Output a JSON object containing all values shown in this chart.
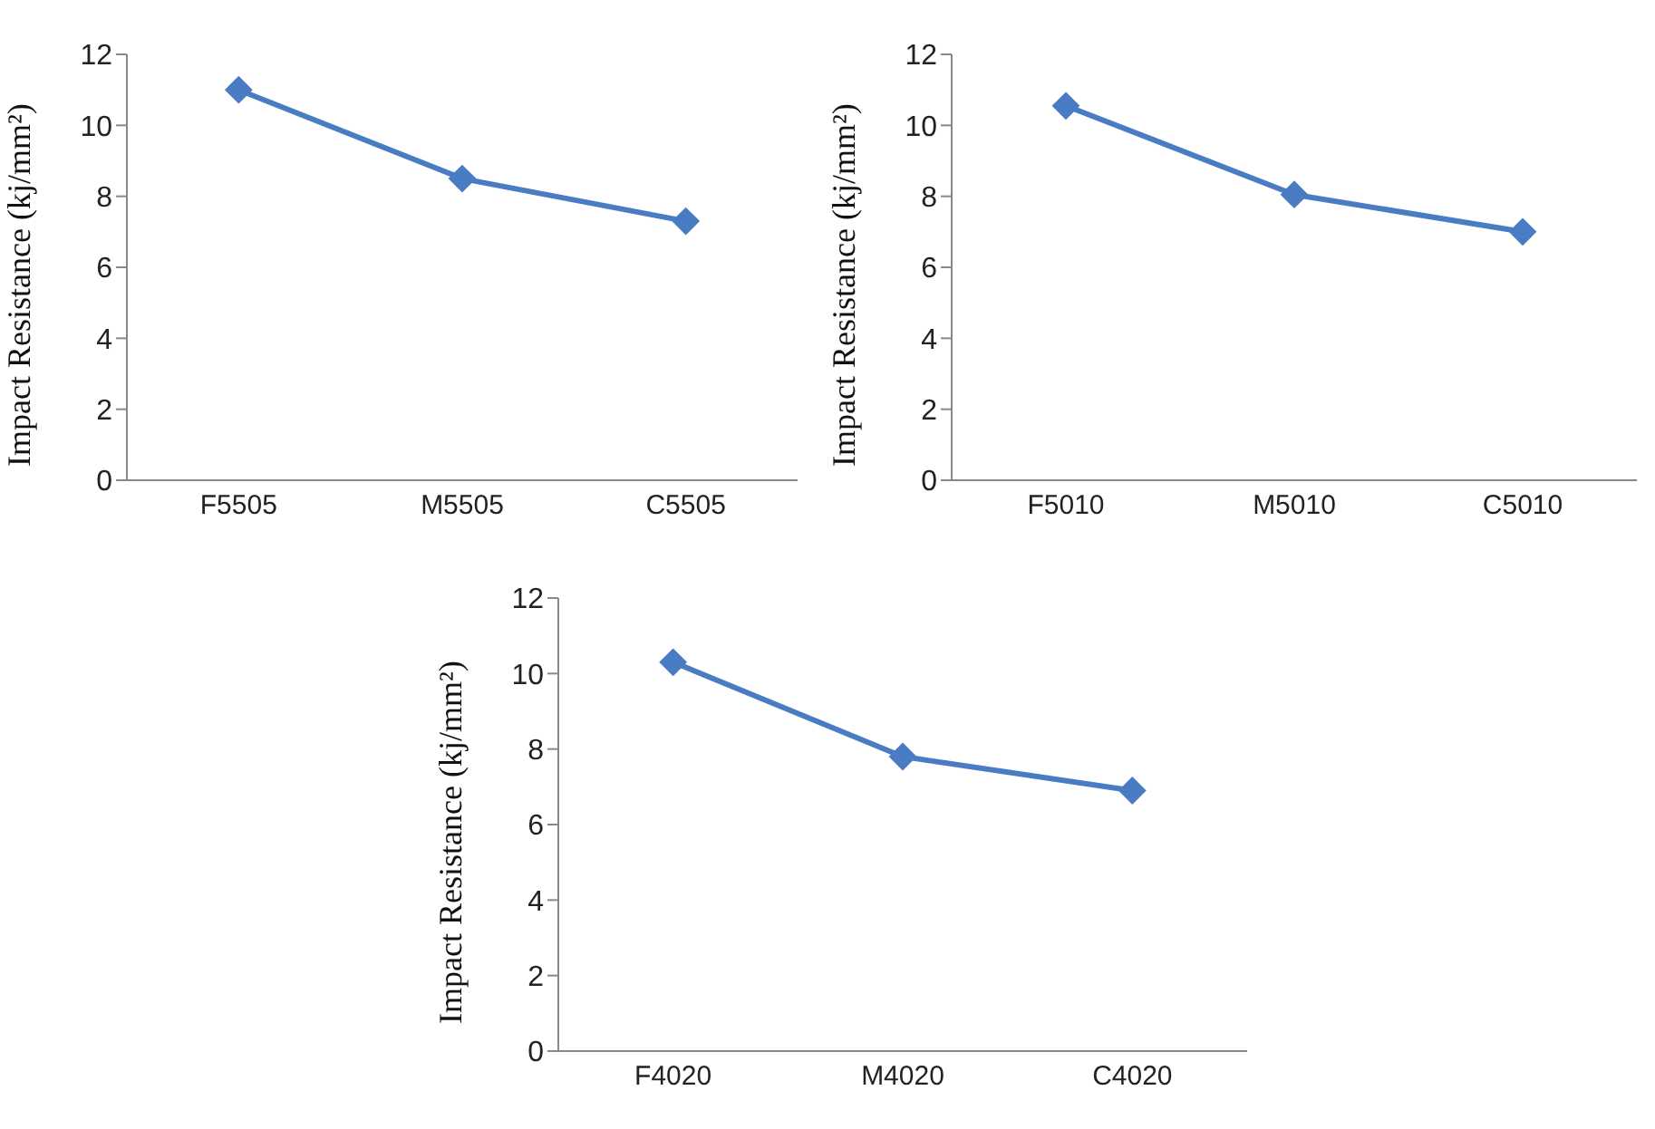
{
  "chart_data": [
    {
      "type": "line",
      "ylabel": "Impact Resistance (kj/mm²)",
      "categories": [
        "F5505",
        "M5505",
        "C5505"
      ],
      "series": [
        {
          "color": "#4a7cc4",
          "values": [
            11.0,
            8.5,
            7.3
          ]
        }
      ],
      "ylim": [
        0,
        12
      ],
      "yticks": [
        0,
        2,
        4,
        6,
        8,
        10,
        12
      ],
      "marker": "diamond",
      "grid": false,
      "legend": false
    },
    {
      "type": "line",
      "ylabel": "Impact Resistance (kj/mm²)",
      "categories": [
        "F5010",
        "M5010",
        "C5010"
      ],
      "series": [
        {
          "color": "#4a7cc4",
          "values": [
            10.55,
            8.05,
            7.0
          ]
        }
      ],
      "ylim": [
        0,
        12
      ],
      "yticks": [
        0,
        2,
        4,
        6,
        8,
        10,
        12
      ],
      "marker": "diamond",
      "grid": false,
      "legend": false
    },
    {
      "type": "line",
      "ylabel": "Impact Resistance (kj/mm²)",
      "categories": [
        "F4020",
        "M4020",
        "C4020"
      ],
      "series": [
        {
          "color": "#4a7cc4",
          "values": [
            10.3,
            7.8,
            6.9
          ]
        }
      ],
      "ylim": [
        0,
        12
      ],
      "yticks": [
        0,
        2,
        4,
        6,
        8,
        10,
        12
      ],
      "marker": "diamond",
      "grid": false,
      "legend": false
    }
  ]
}
